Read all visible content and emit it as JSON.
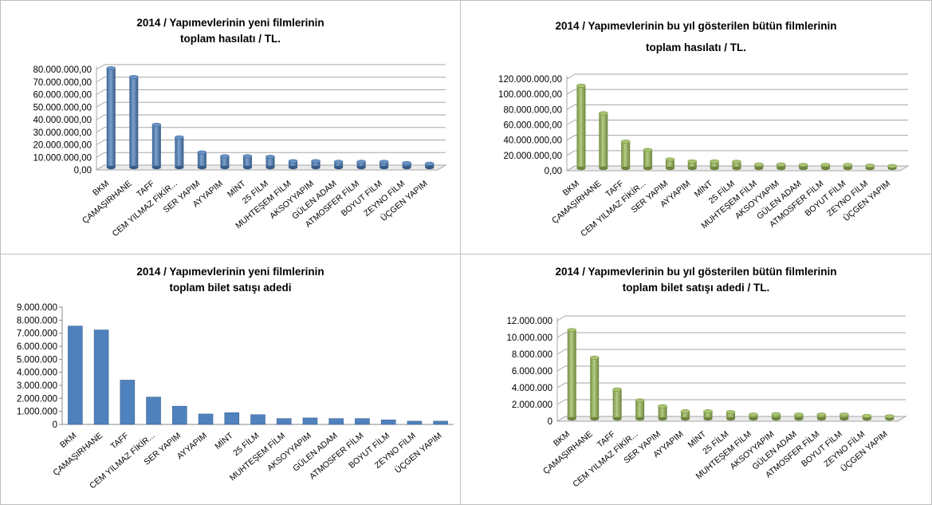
{
  "chart_data": [
    {
      "type": "bar",
      "title_lines": [
        "2014 / Yapımevlerinin yeni filmlerinin",
        "toplam hasılatı / TL."
      ],
      "categories": [
        "BKM",
        "ÇAMAŞIRHANE",
        "TAFF",
        "CEM YILMAZ FİKİR...",
        "SER YAPIM",
        "AYYAPIM",
        "MİNT",
        "25 FİLM",
        "MUHTEŞEM FİLM",
        "AKSOYYAPIM",
        "GÜLEN ADAM",
        "ATMOSFER FİLM",
        "BOYUT FİLM",
        "ZEYNO FİLM",
        "ÜÇGEN YAPIM"
      ],
      "values": [
        79000000,
        72000000,
        34000000,
        24000000,
        12000000,
        9000000,
        9000000,
        8500000,
        5000000,
        5000000,
        4500000,
        4500000,
        4500000,
        3500000,
        3000000
      ],
      "yticks": [
        "0,00",
        "10.000.000,00",
        "20.000.000,00",
        "30.000.000,00",
        "40.000.000,00",
        "50.000.000,00",
        "60.000.000,00",
        "70.000.000,00",
        "80.000.000,00"
      ],
      "ylim": [
        0,
        80000000
      ],
      "color": "#4f81bd",
      "style": "3d-cylinder",
      "grid": true
    },
    {
      "type": "bar",
      "title_lines": [
        "2014 / Yapımevlerinin bu yıl gösterilen bütün filmlerinin",
        "toplam hasılatı / TL."
      ],
      "categories": [
        "BKM",
        "ÇAMAŞIRHANE",
        "TAFF",
        "CEM YILMAZ FİKİR...",
        "SER YAPIM",
        "AYYAPIM",
        "MİNT",
        "25 FİLM",
        "MUHTEŞEM FİLM",
        "AKSOYYAPIM",
        "GÜLEN ADAM",
        "ATMOSFER FİLM",
        "BOYUT FİLM",
        "ZEYNO FİLM",
        "ÜÇGEN YAPIM"
      ],
      "values": [
        108000000,
        72000000,
        35000000,
        24000000,
        11500000,
        9000000,
        9000000,
        8500000,
        5000000,
        5000000,
        4500000,
        4500000,
        4500000,
        3500000,
        3000000
      ],
      "yticks": [
        "0,00",
        "20.000.000,00",
        "40.000.000,00",
        "60.000.000,00",
        "80.000.000,00",
        "100.000.000,00",
        "120.000.000,00"
      ],
      "ylim": [
        0,
        120000000
      ],
      "color": "#9bbb59",
      "style": "3d-cylinder",
      "grid": true
    },
    {
      "type": "bar",
      "title_lines": [
        "2014 / Yapımevlerinin yeni filmlerinin",
        "toplam bilet satışı adedi"
      ],
      "categories": [
        "BKM",
        "ÇAMAŞIRHANE",
        "TAFF",
        "CEM YILMAZ FİKİR...",
        "SER YAPIM",
        "AYYAPIM",
        "MİNT",
        "25 FİLM",
        "MUHTEŞEM FİLM",
        "AKSOYYAPIM",
        "GÜLEN ADAM",
        "ATMOSFER FİLM",
        "BOYUT FİLM",
        "ZEYNO FİLM",
        "ÜÇGEN YAPIM"
      ],
      "values": [
        7550000,
        7250000,
        3400000,
        2100000,
        1400000,
        800000,
        900000,
        750000,
        450000,
        500000,
        450000,
        450000,
        350000,
        250000,
        250000
      ],
      "yticks": [
        "0",
        "1.000.000",
        "2.000.000",
        "3.000.000",
        "4.000.000",
        "5.000.000",
        "6.000.000",
        "7.000.000",
        "8.000.000",
        "9.000.000"
      ],
      "ylim": [
        0,
        9000000
      ],
      "color": "#4f81bd",
      "style": "flat",
      "grid": false
    },
    {
      "type": "bar",
      "title_lines": [
        "2014 / Yapımevlerinin bu yıl gösterilen bütün filmlerinin",
        "toplam bilet satışı adedi / TL."
      ],
      "categories": [
        "BKM",
        "ÇAMAŞIRHANE",
        "TAFF",
        "CEM YILMAZ FİKİR...",
        "SER YAPIM",
        "AYYAPIM",
        "MİNT",
        "25 FİLM",
        "MUHTEŞEM FİLM",
        "AKSOYYAPIM",
        "GÜLEN ADAM",
        "ATMOSFER FİLM",
        "BOYUT FİLM",
        "ZEYNO FİLM",
        "ÜÇGEN YAPIM"
      ],
      "values": [
        10600000,
        7300000,
        3500000,
        2200000,
        1500000,
        900000,
        900000,
        800000,
        500000,
        550000,
        500000,
        500000,
        500000,
        350000,
        300000
      ],
      "yticks": [
        "0",
        "2.000.000",
        "4.000.000",
        "6.000.000",
        "8.000.000",
        "10.000.000",
        "12.000.000"
      ],
      "ylim": [
        0,
        12000000
      ],
      "color": "#9bbb59",
      "style": "3d-cylinder",
      "grid": true
    }
  ]
}
